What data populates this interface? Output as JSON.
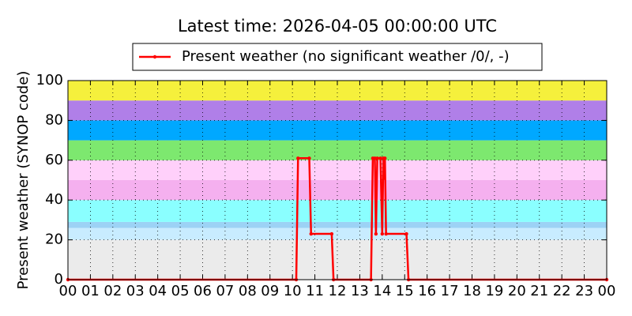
{
  "chart_data": {
    "type": "line",
    "title": "Latest time: 2026-04-05 00:00:00 UTC",
    "y_label": "Present weather (SYNOP code)",
    "legend_position": "top",
    "grid": true,
    "xlim": [
      0,
      24
    ],
    "ylim": [
      0,
      100
    ],
    "yticks": [
      0,
      20,
      40,
      60,
      80,
      100
    ],
    "xticks": [
      {
        "value": 0,
        "label": "00"
      },
      {
        "value": 1,
        "label": "01"
      },
      {
        "value": 2,
        "label": "02"
      },
      {
        "value": 3,
        "label": "03"
      },
      {
        "value": 4,
        "label": "04"
      },
      {
        "value": 5,
        "label": "05"
      },
      {
        "value": 6,
        "label": "06"
      },
      {
        "value": 7,
        "label": "07"
      },
      {
        "value": 8,
        "label": "08"
      },
      {
        "value": 9,
        "label": "09"
      },
      {
        "value": 10,
        "label": "10"
      },
      {
        "value": 11,
        "label": "11"
      },
      {
        "value": 12,
        "label": "12"
      },
      {
        "value": 13,
        "label": "13"
      },
      {
        "value": 14,
        "label": "14"
      },
      {
        "value": 15,
        "label": "15"
      },
      {
        "value": 16,
        "label": "16"
      },
      {
        "value": 17,
        "label": "17"
      },
      {
        "value": 18,
        "label": "18"
      },
      {
        "value": 19,
        "label": "19"
      },
      {
        "value": 20,
        "label": "20"
      },
      {
        "value": 21,
        "label": "21"
      },
      {
        "value": 22,
        "label": "22"
      },
      {
        "value": 23,
        "label": "23"
      },
      {
        "value": 24,
        "label": "00"
      }
    ],
    "bands": [
      {
        "from": 0,
        "to": 20,
        "color": "#ebebeb"
      },
      {
        "from": 20,
        "to": 26,
        "color": "#c8ecff"
      },
      {
        "from": 26,
        "to": 29,
        "color": "#9cd2f5"
      },
      {
        "from": 29,
        "to": 40,
        "color": "#8affff"
      },
      {
        "from": 40,
        "to": 50,
        "color": "#f5b0ef"
      },
      {
        "from": 50,
        "to": 60,
        "color": "#ffd0fa"
      },
      {
        "from": 60,
        "to": 70,
        "color": "#7de86f"
      },
      {
        "from": 70,
        "to": 80,
        "color": "#00a8ff"
      },
      {
        "from": 80,
        "to": 90,
        "color": "#b07fe8"
      },
      {
        "from": 90,
        "to": 100,
        "color": "#f5f03c"
      }
    ],
    "x": [
      0,
      10.17,
      10.25,
      10.75,
      10.83,
      11.75,
      11.83,
      13.5,
      13.58,
      13.67,
      13.72,
      13.78,
      13.92,
      14.0,
      14.05,
      14.08,
      14.12,
      14.17,
      15.08,
      15.17,
      24
    ],
    "series": [
      {
        "name": "Present weather (no significant weather /0/, -)",
        "color": "#ff0000",
        "values": [
          0,
          0,
          61,
          61,
          23,
          23,
          0,
          0,
          61,
          61,
          23,
          61,
          61,
          23,
          61,
          51,
          61,
          23,
          23,
          0,
          0
        ]
      }
    ]
  }
}
